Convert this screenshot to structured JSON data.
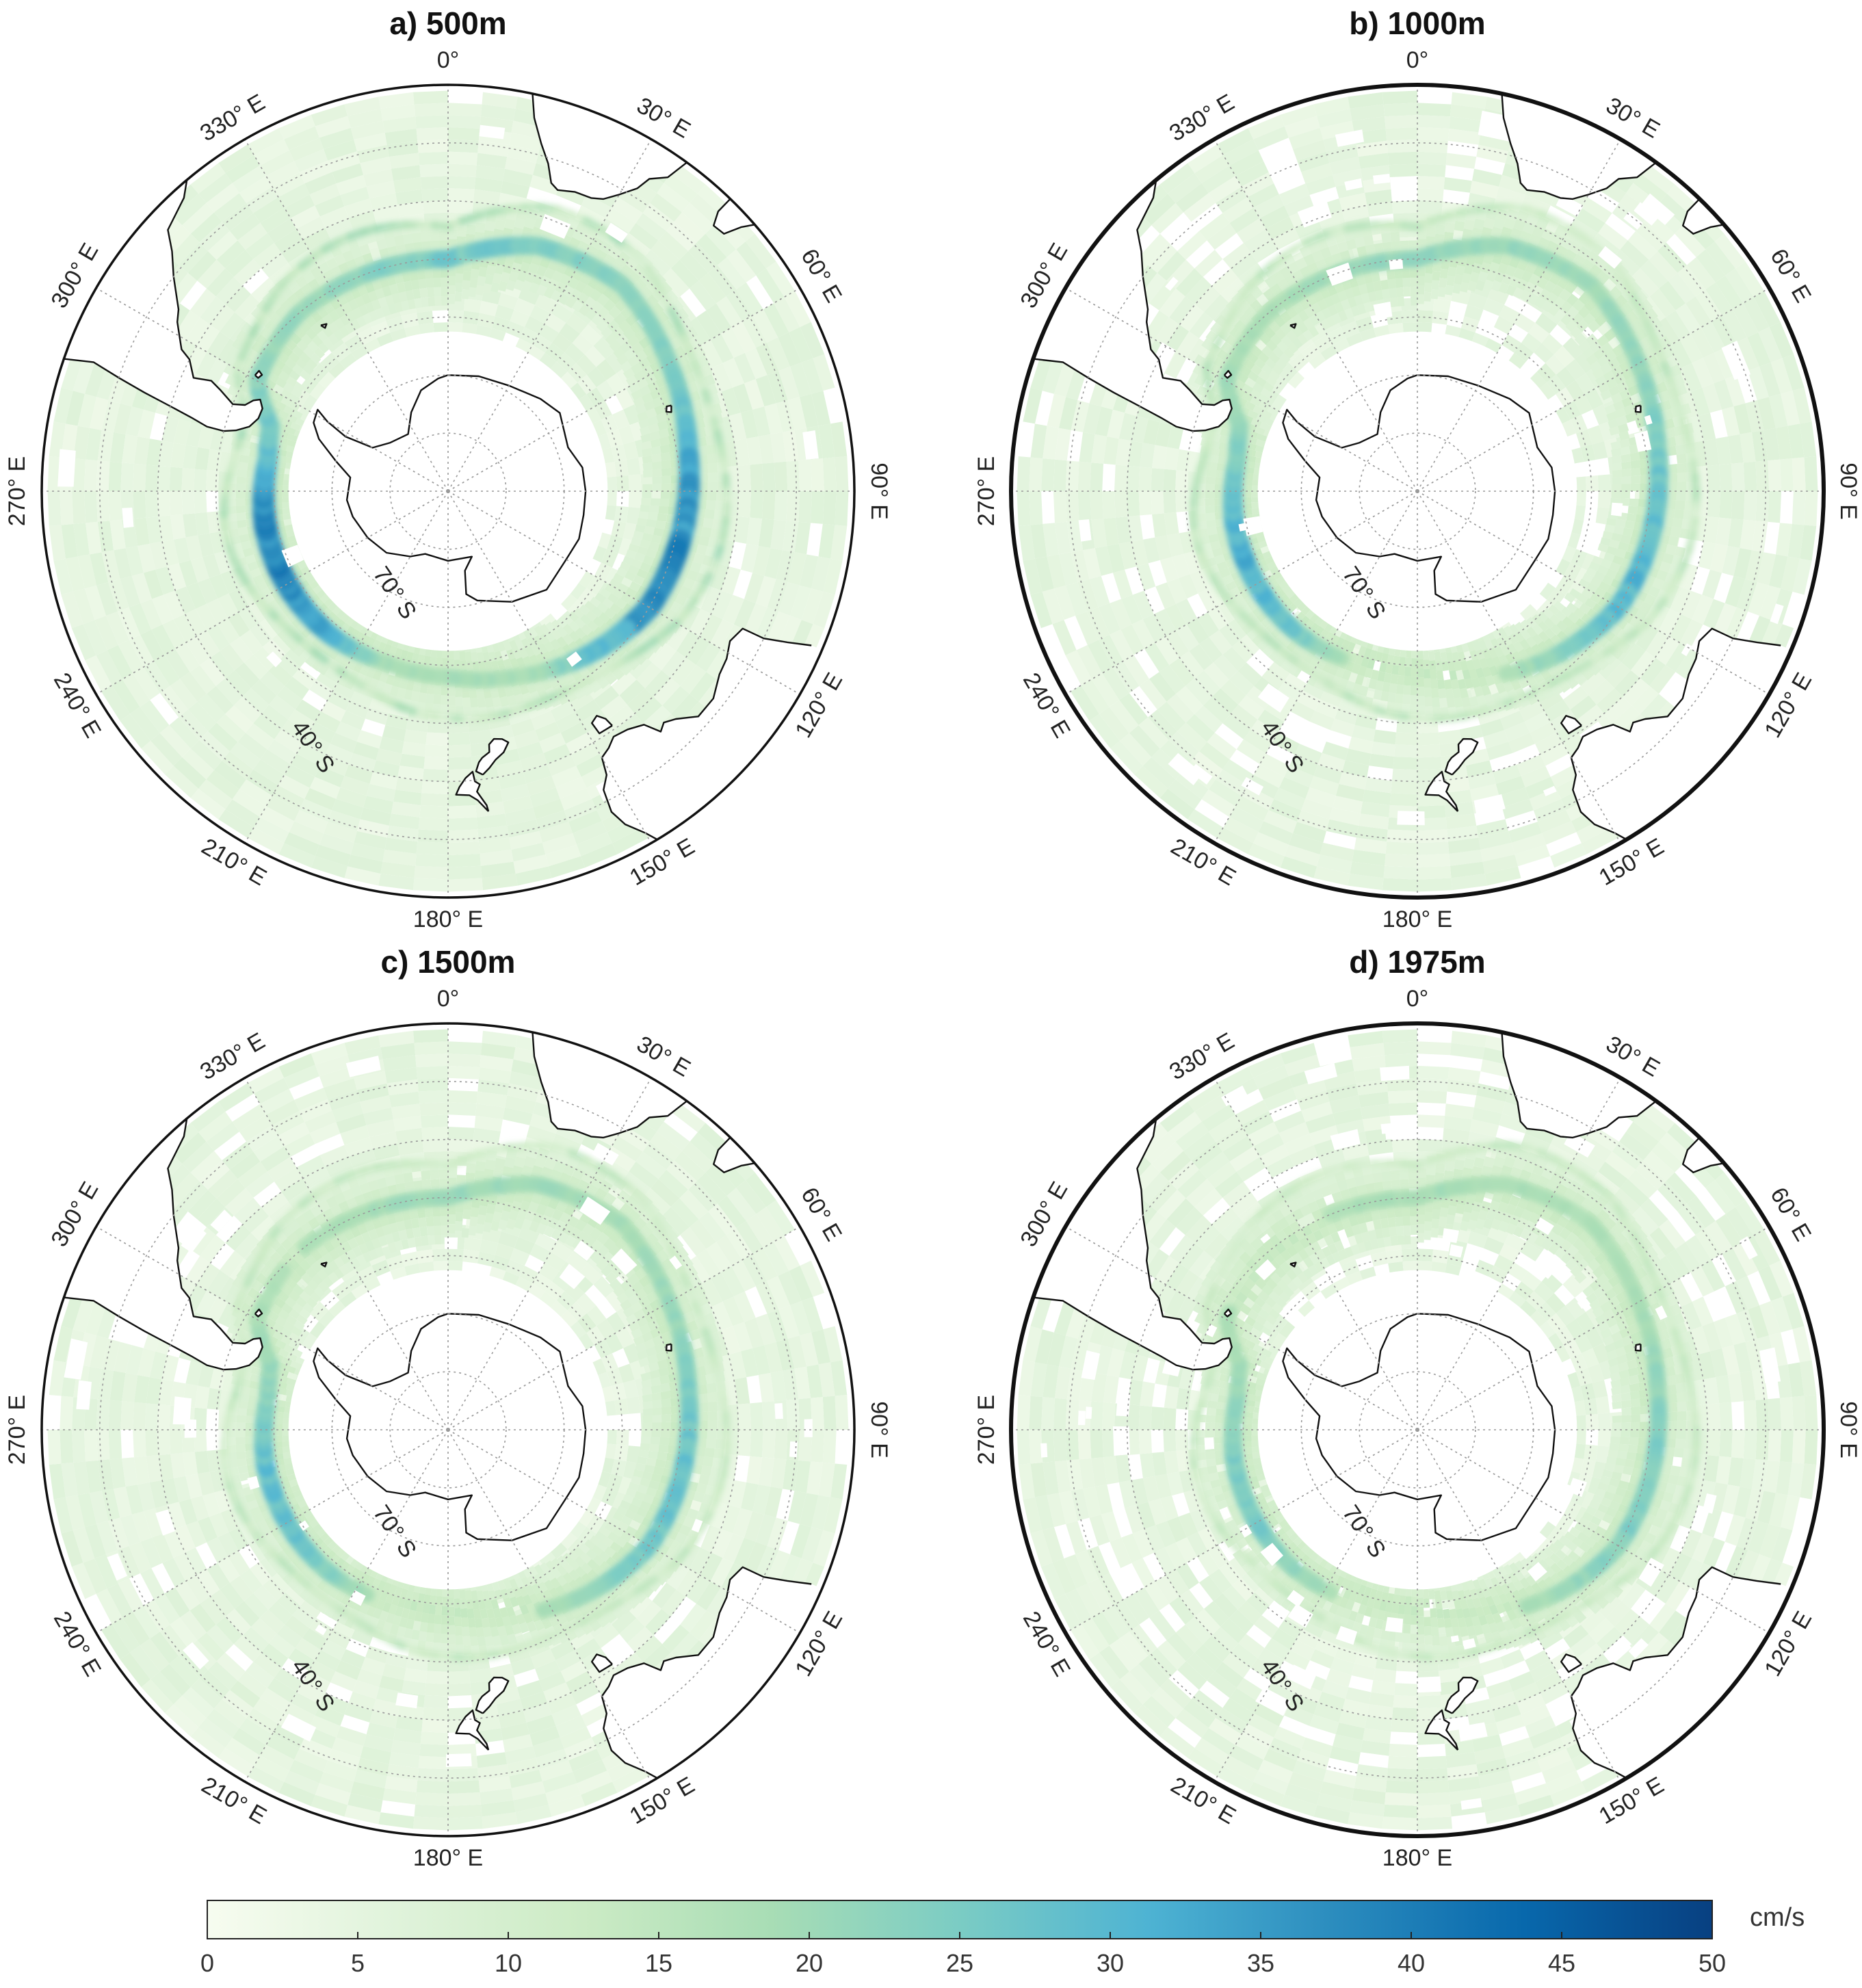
{
  "panels": [
    {
      "id": "a",
      "title": "a) 500m",
      "intensity": 1.0,
      "speckle": 0.03,
      "gaps": 0.04,
      "outline": "thin"
    },
    {
      "id": "b",
      "title": "b) 1000m",
      "intensity": 0.72,
      "speckle": 0.03,
      "gaps": 0.14,
      "outline": "thick"
    },
    {
      "id": "c",
      "title": "c) 1500m",
      "intensity": 0.62,
      "speckle": 0.05,
      "gaps": 0.12,
      "outline": "thin"
    },
    {
      "id": "d",
      "title": "d) 1975m",
      "intensity": 0.5,
      "speckle": 0.07,
      "gaps": 0.2,
      "outline": "thick"
    }
  ],
  "longitude_labels": [
    {
      "deg": 0,
      "text": "0°"
    },
    {
      "deg": 30,
      "text": "30° E"
    },
    {
      "deg": 60,
      "text": "60° E"
    },
    {
      "deg": 90,
      "text": "90° E"
    },
    {
      "deg": 120,
      "text": "120° E"
    },
    {
      "deg": 150,
      "text": "150° E"
    },
    {
      "deg": 180,
      "text": "180° E"
    },
    {
      "deg": 210,
      "text": "210° E"
    },
    {
      "deg": 240,
      "text": "240° E"
    },
    {
      "deg": 270,
      "text": "270° E"
    },
    {
      "deg": 300,
      "text": "300° E"
    },
    {
      "deg": 330,
      "text": "330° E"
    }
  ],
  "latitude_labels": [
    {
      "lat": -70,
      "text": "70° S"
    },
    {
      "lat": -40,
      "text": "40° S"
    }
  ],
  "colorbar": {
    "min": 0,
    "max": 50,
    "ticks": [
      "0",
      "5",
      "10",
      "15",
      "20",
      "25",
      "30",
      "35",
      "40",
      "45",
      "50"
    ],
    "unit": "cm/s",
    "colors": [
      "#f7fcf0",
      "#e0f3db",
      "#ccebc5",
      "#a8ddb5",
      "#7bccc4",
      "#4eb3d3",
      "#2b8cbe",
      "#0868ac",
      "#084081"
    ]
  },
  "map_extent": {
    "max_lat": -20
  },
  "colors": {
    "coast": "#111111",
    "grid": "#9a9a9a",
    "ocean_base": "#e5f5e0",
    "frame": "#111111"
  }
}
